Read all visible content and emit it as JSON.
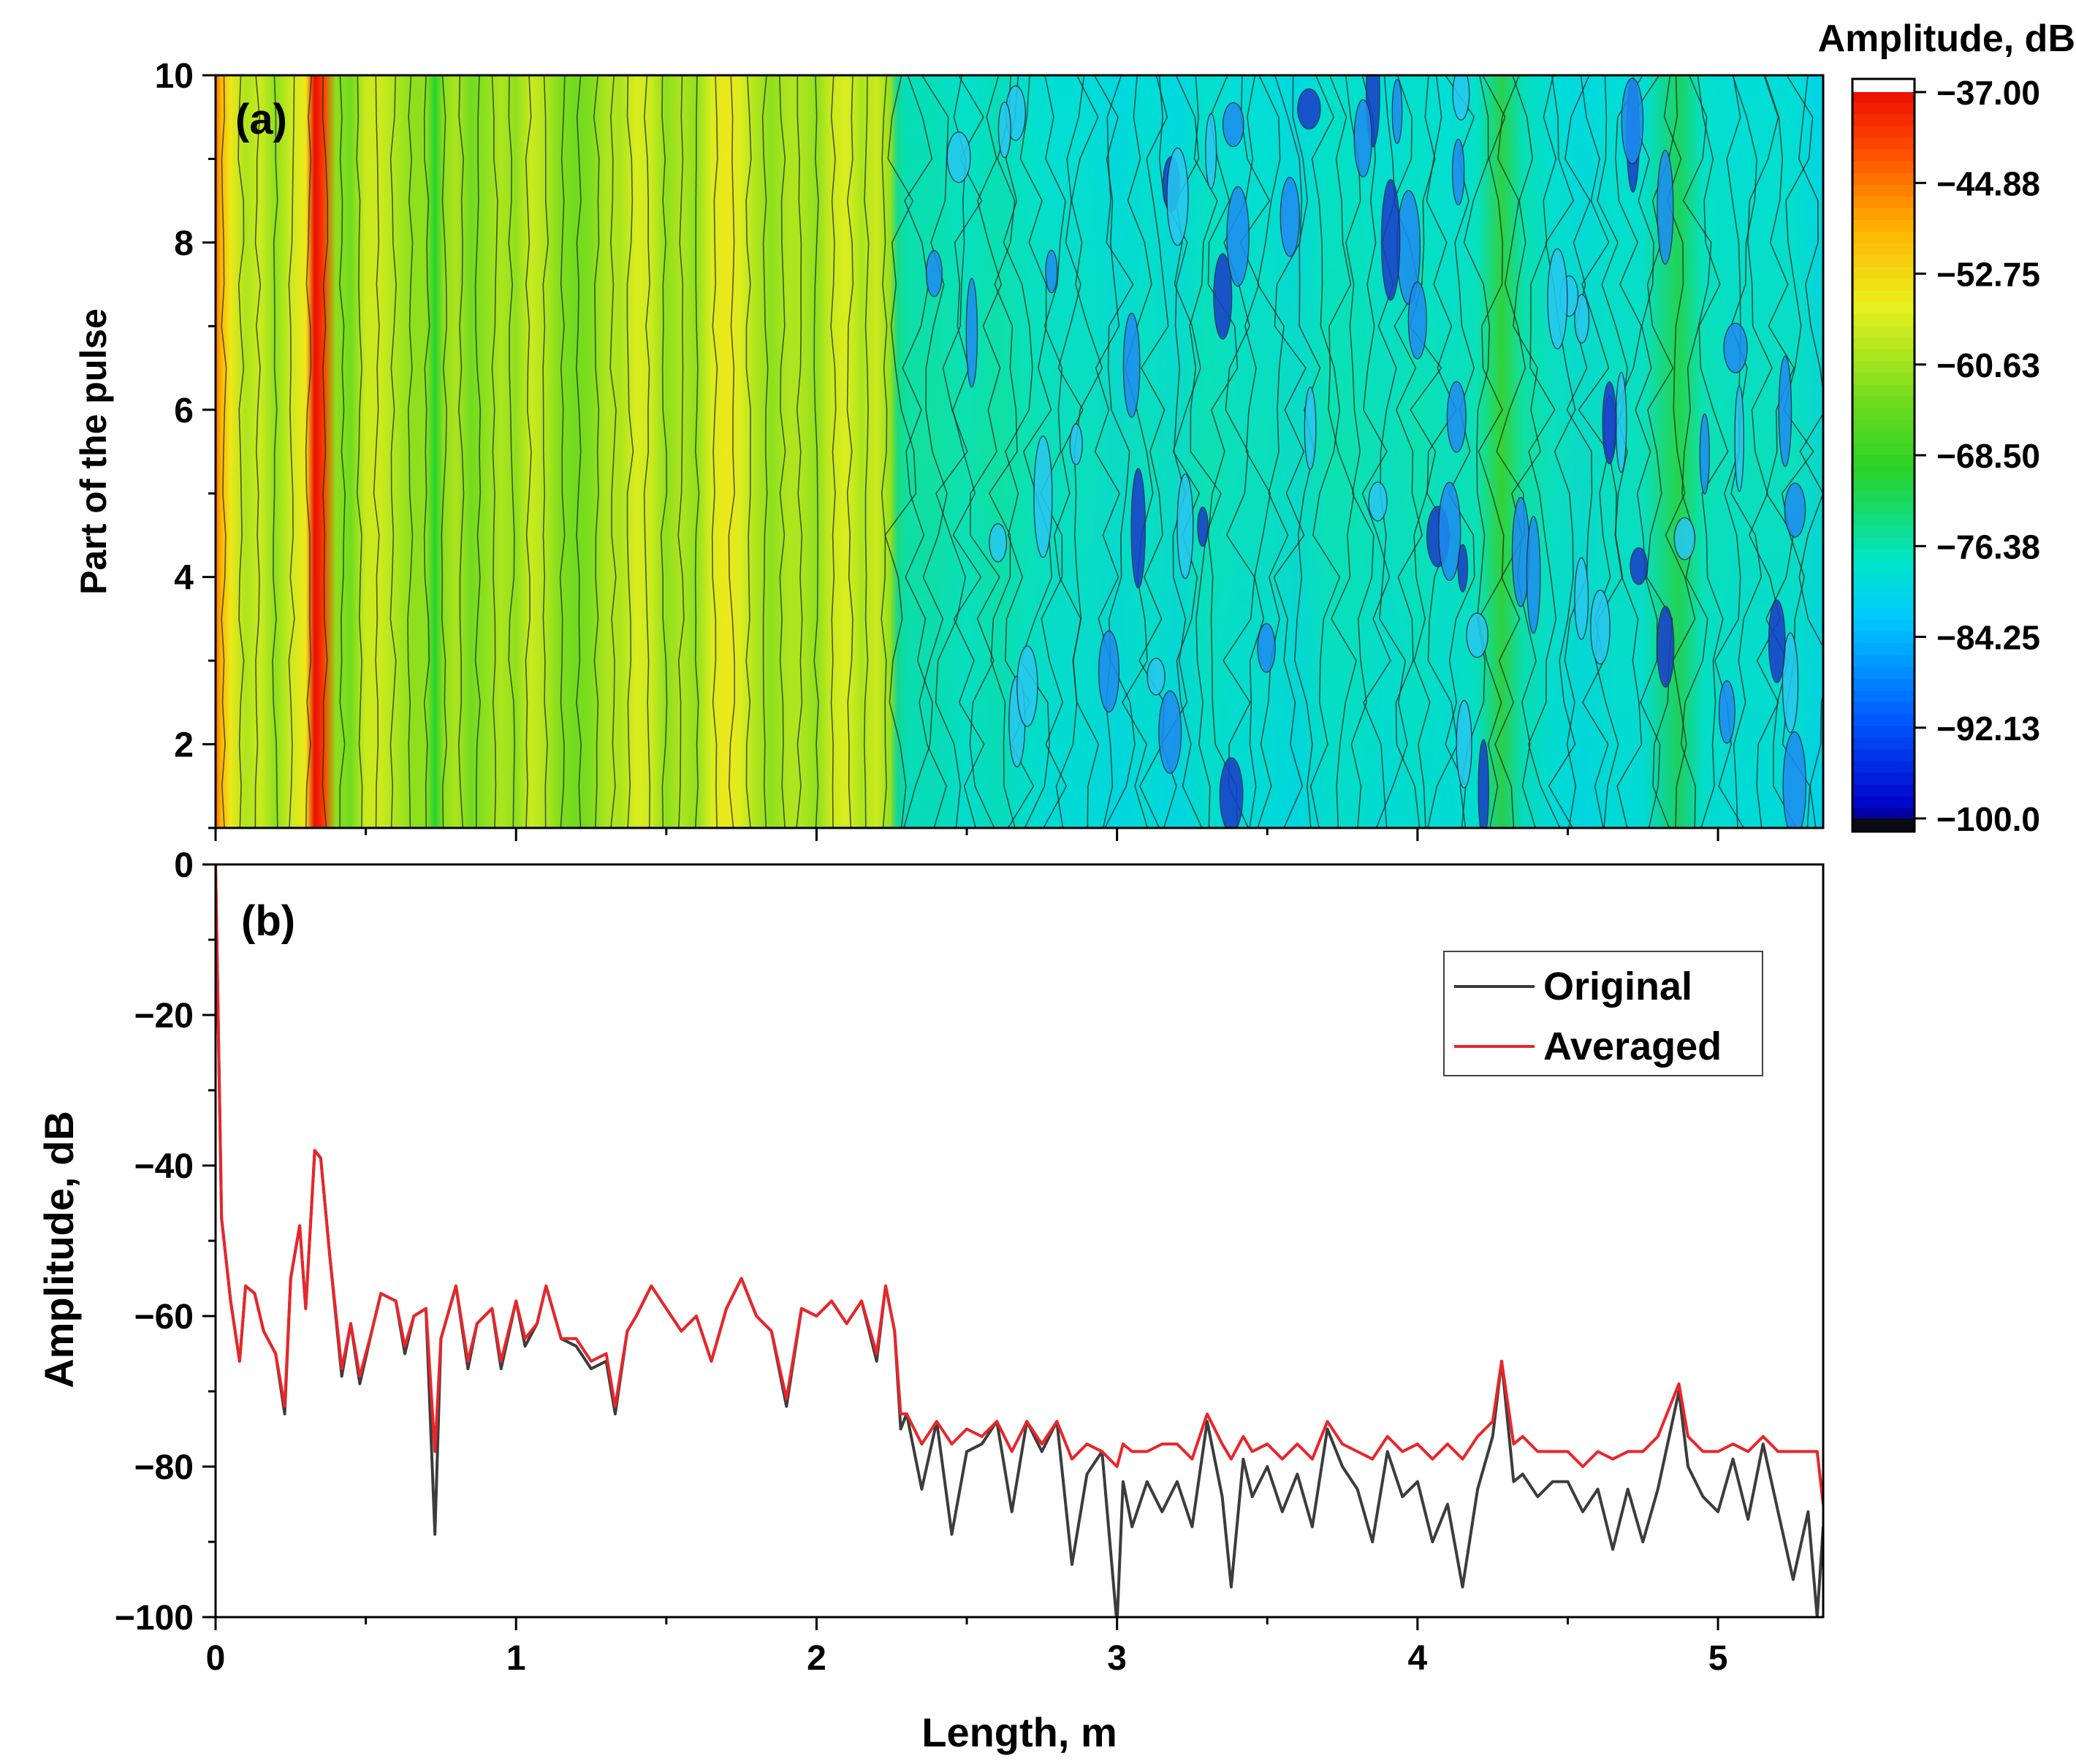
{
  "colors": {
    "original_line": "#3c3c3c",
    "averaged_line": "#e8262a",
    "axis": "#000000",
    "contour_line": "#1e2a1e"
  },
  "chart_data": [
    {
      "type": "heatmap",
      "panel_label": "(a)",
      "xlim": [
        0,
        5.35
      ],
      "ylim": [
        1,
        10
      ],
      "ylabel": "Part of the pulse",
      "yticks": [
        2,
        4,
        6,
        8,
        10
      ],
      "colorbar": {
        "title": "Amplitude, dB",
        "range": [
          -100,
          -37
        ],
        "tick_labels": [
          "−37.00",
          "−44.88",
          "−52.75",
          "−60.63",
          "−68.50",
          "−76.38",
          "−84.25",
          "−92.13",
          "−100.0"
        ],
        "tick_values": [
          -37.0,
          -44.88,
          -52.75,
          -60.63,
          -68.5,
          -76.38,
          -84.25,
          -92.13,
          -100.0
        ]
      },
      "column_profile": {
        "x": [
          0.0,
          0.02,
          0.05,
          0.1,
          0.15,
          0.2,
          0.25,
          0.3,
          0.33,
          0.36,
          0.4,
          0.45,
          0.5,
          0.55,
          0.6,
          0.65,
          0.7,
          0.73,
          0.76,
          0.8,
          0.85,
          0.9,
          0.95,
          1.0,
          1.05,
          1.1,
          1.15,
          1.2,
          1.25,
          1.3,
          1.35,
          1.4,
          1.45,
          1.5,
          1.55,
          1.6,
          1.65,
          1.7,
          1.75,
          1.8,
          1.85,
          1.9,
          1.95,
          2.0,
          2.05,
          2.1,
          2.15,
          2.2,
          2.25,
          2.27,
          2.3,
          2.4,
          2.5,
          2.6,
          2.7,
          2.8,
          2.9,
          3.0,
          3.1,
          3.2,
          3.3,
          3.4,
          3.5,
          3.6,
          3.7,
          3.8,
          3.9,
          4.0,
          4.1,
          4.2,
          4.28,
          4.35,
          4.45,
          4.55,
          4.65,
          4.75,
          4.87,
          4.95,
          5.05,
          5.15,
          5.25,
          5.35
        ],
        "values_db": [
          -45,
          -50,
          -55,
          -60,
          -58,
          -62,
          -58,
          -55,
          -38,
          -42,
          -62,
          -64,
          -58,
          -58,
          -60,
          -62,
          -62,
          -70,
          -62,
          -60,
          -64,
          -62,
          -60,
          -62,
          -58,
          -60,
          -63,
          -64,
          -63,
          -60,
          -60,
          -57,
          -58,
          -62,
          -60,
          -62,
          -57,
          -55,
          -57,
          -60,
          -62,
          -60,
          -60,
          -62,
          -58,
          -57,
          -60,
          -58,
          -62,
          -74,
          -76,
          -76,
          -77,
          -76,
          -77,
          -78,
          -78,
          -79,
          -78,
          -79,
          -77,
          -78,
          -78,
          -79,
          -77,
          -77,
          -78,
          -77,
          -78,
          -77,
          -69,
          -76,
          -78,
          -79,
          -78,
          -78,
          -71,
          -77,
          -78,
          -78,
          -78,
          -80
        ]
      }
    },
    {
      "type": "line",
      "panel_label": "(b)",
      "xlabel": "Length, m",
      "ylabel": "Amplitude, dB",
      "xlim": [
        0,
        5.35
      ],
      "ylim": [
        -100,
        0
      ],
      "xticks": [
        0,
        1,
        2,
        3,
        4,
        5
      ],
      "yticks": [
        0,
        -20,
        -40,
        -60,
        -80,
        -100
      ],
      "x_tick_labels": [
        "0",
        "1",
        "2",
        "3",
        "4",
        "5"
      ],
      "y_tick_labels": [
        "0",
        "−20",
        "−40",
        "−60",
        "−80",
        "−100"
      ],
      "legend": {
        "position": "top-right",
        "entries": [
          "Original",
          "Averaged"
        ]
      },
      "series": [
        {
          "name": "Original",
          "x": [
            0.0,
            0.02,
            0.05,
            0.08,
            0.1,
            0.13,
            0.16,
            0.2,
            0.23,
            0.25,
            0.28,
            0.3,
            0.33,
            0.35,
            0.38,
            0.42,
            0.45,
            0.48,
            0.52,
            0.55,
            0.6,
            0.63,
            0.66,
            0.7,
            0.73,
            0.75,
            0.8,
            0.84,
            0.87,
            0.92,
            0.95,
            1.0,
            1.03,
            1.07,
            1.1,
            1.15,
            1.2,
            1.25,
            1.3,
            1.33,
            1.37,
            1.4,
            1.45,
            1.5,
            1.55,
            1.6,
            1.65,
            1.7,
            1.75,
            1.8,
            1.85,
            1.9,
            1.95,
            2.0,
            2.05,
            2.1,
            2.15,
            2.2,
            2.23,
            2.26,
            2.28,
            2.3,
            2.35,
            2.4,
            2.45,
            2.5,
            2.55,
            2.6,
            2.65,
            2.7,
            2.75,
            2.8,
            2.85,
            2.9,
            2.95,
            3.0,
            3.02,
            3.05,
            3.1,
            3.15,
            3.2,
            3.25,
            3.3,
            3.35,
            3.38,
            3.42,
            3.45,
            3.5,
            3.55,
            3.6,
            3.65,
            3.7,
            3.75,
            3.8,
            3.85,
            3.9,
            3.95,
            4.0,
            4.05,
            4.1,
            4.15,
            4.2,
            4.25,
            4.28,
            4.32,
            4.35,
            4.4,
            4.45,
            4.5,
            4.55,
            4.6,
            4.65,
            4.7,
            4.75,
            4.8,
            4.87,
            4.9,
            4.95,
            5.0,
            5.05,
            5.1,
            5.15,
            5.2,
            5.25,
            5.3,
            5.33,
            5.35
          ],
          "y": [
            0,
            -47,
            -58,
            -66,
            -56,
            -57,
            -62,
            -65,
            -73,
            -55,
            -48,
            -59,
            -38,
            -39,
            -52,
            -68,
            -61,
            -69,
            -62,
            -57,
            -58,
            -65,
            -60,
            -59,
            -89,
            -63,
            -56,
            -67,
            -61,
            -59,
            -67,
            -58,
            -64,
            -61,
            -56,
            -63,
            -64,
            -67,
            -66,
            -73,
            -62,
            -60,
            -56,
            -59,
            -62,
            -60,
            -66,
            -59,
            -55,
            -60,
            -62,
            -72,
            -59,
            -60,
            -58,
            -61,
            -58,
            -66,
            -56,
            -62,
            -75,
            -73,
            -83,
            -74,
            -89,
            -78,
            -77,
            -74,
            -86,
            -74,
            -78,
            -74,
            -93,
            -81,
            -78,
            -101,
            -82,
            -88,
            -82,
            -86,
            -82,
            -88,
            -74,
            -84,
            -96,
            -79,
            -84,
            -80,
            -86,
            -81,
            -88,
            -75,
            -80,
            -83,
            -90,
            -78,
            -84,
            -82,
            -90,
            -85,
            -96,
            -83,
            -76,
            -66,
            -82,
            -81,
            -84,
            -82,
            -82,
            -86,
            -83,
            -91,
            -83,
            -90,
            -83,
            -70,
            -80,
            -84,
            -86,
            -79,
            -87,
            -77,
            -86,
            -95,
            -86,
            -100,
            -88
          ]
        },
        {
          "name": "Averaged",
          "x": [
            0.0,
            0.02,
            0.05,
            0.08,
            0.1,
            0.13,
            0.16,
            0.2,
            0.23,
            0.25,
            0.28,
            0.3,
            0.33,
            0.35,
            0.38,
            0.42,
            0.45,
            0.48,
            0.52,
            0.55,
            0.6,
            0.63,
            0.66,
            0.7,
            0.73,
            0.75,
            0.8,
            0.84,
            0.87,
            0.92,
            0.95,
            1.0,
            1.03,
            1.07,
            1.1,
            1.15,
            1.2,
            1.25,
            1.3,
            1.33,
            1.37,
            1.4,
            1.45,
            1.5,
            1.55,
            1.6,
            1.65,
            1.7,
            1.75,
            1.8,
            1.85,
            1.9,
            1.95,
            2.0,
            2.05,
            2.1,
            2.15,
            2.2,
            2.23,
            2.26,
            2.28,
            2.3,
            2.35,
            2.4,
            2.45,
            2.5,
            2.55,
            2.6,
            2.65,
            2.7,
            2.75,
            2.8,
            2.85,
            2.9,
            2.95,
            3.0,
            3.02,
            3.05,
            3.1,
            3.15,
            3.2,
            3.25,
            3.3,
            3.35,
            3.38,
            3.42,
            3.45,
            3.5,
            3.55,
            3.6,
            3.65,
            3.7,
            3.75,
            3.8,
            3.85,
            3.9,
            3.95,
            4.0,
            4.05,
            4.1,
            4.15,
            4.2,
            4.25,
            4.28,
            4.32,
            4.35,
            4.4,
            4.45,
            4.5,
            4.55,
            4.6,
            4.65,
            4.7,
            4.75,
            4.8,
            4.87,
            4.9,
            4.95,
            5.0,
            5.05,
            5.1,
            5.15,
            5.2,
            5.25,
            5.3,
            5.33,
            5.35
          ],
          "y": [
            0,
            -47,
            -58,
            -66,
            -56,
            -57,
            -62,
            -65,
            -72,
            -55,
            -48,
            -59,
            -38,
            -39,
            -52,
            -67,
            -61,
            -68,
            -62,
            -57,
            -58,
            -64,
            -60,
            -59,
            -78,
            -63,
            -56,
            -66,
            -61,
            -59,
            -66,
            -58,
            -63,
            -61,
            -56,
            -63,
            -63,
            -66,
            -65,
            -72,
            -62,
            -60,
            -56,
            -59,
            -62,
            -60,
            -66,
            -59,
            -55,
            -60,
            -62,
            -71,
            -59,
            -60,
            -58,
            -61,
            -58,
            -65,
            -56,
            -62,
            -73,
            -73,
            -77,
            -74,
            -77,
            -75,
            -76,
            -74,
            -78,
            -74,
            -77,
            -74,
            -79,
            -77,
            -78,
            -80,
            -77,
            -78,
            -78,
            -77,
            -77,
            -79,
            -73,
            -77,
            -79,
            -76,
            -78,
            -77,
            -79,
            -77,
            -79,
            -74,
            -77,
            -78,
            -79,
            -76,
            -78,
            -77,
            -79,
            -77,
            -79,
            -76,
            -74,
            -66,
            -77,
            -76,
            -78,
            -78,
            -78,
            -80,
            -78,
            -79,
            -78,
            -78,
            -76,
            -69,
            -76,
            -78,
            -78,
            -77,
            -78,
            -76,
            -78,
            -78,
            -78,
            -78,
            -85
          ]
        }
      ]
    }
  ]
}
